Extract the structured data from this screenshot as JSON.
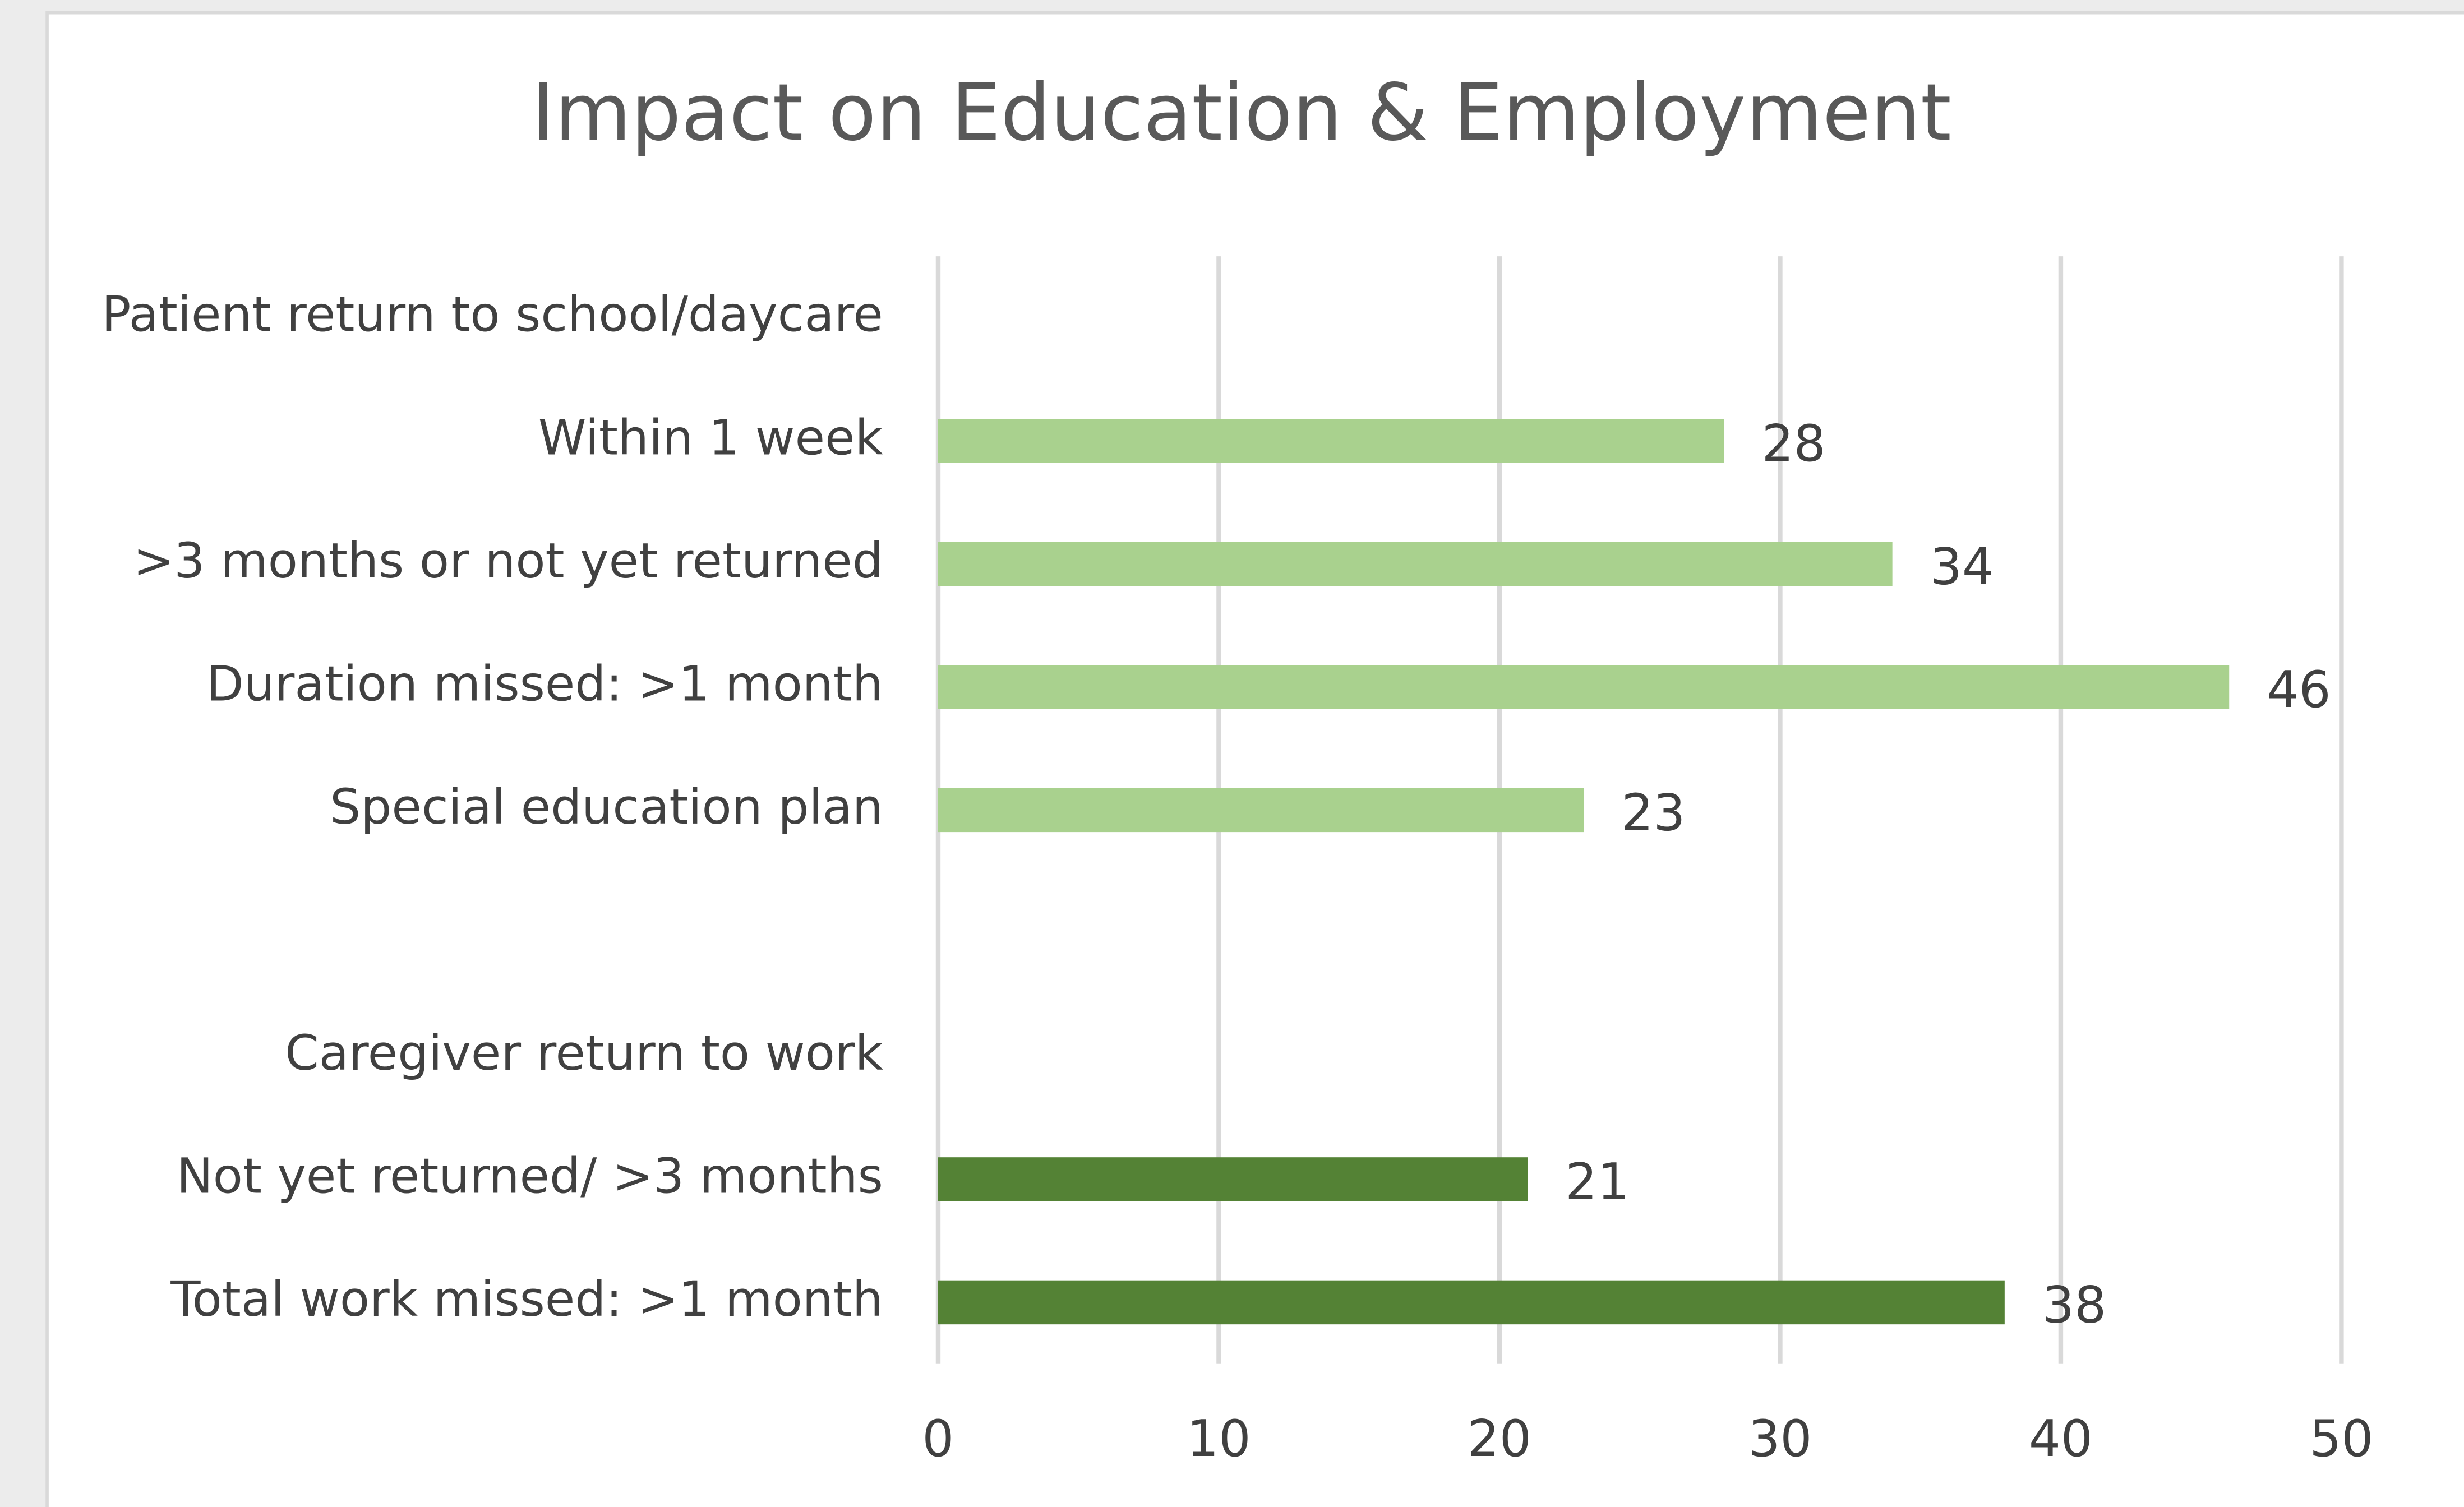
{
  "chart_data": {
    "type": "bar",
    "orientation": "horizontal",
    "title": "Impact on Education & Employment",
    "categories": [
      "Patient return to school/daycare",
      "Within 1 week",
      ">3 months or not yet returned",
      "Duration missed: >1 month",
      "Special education plan",
      null,
      "Caregiver return to work",
      "Not yet returned/ >3 months",
      "Total work missed: >1 month"
    ],
    "values": [
      null,
      28,
      34,
      46,
      23,
      null,
      null,
      21,
      38
    ],
    "colors": [
      null,
      "#a9d18e",
      "#a9d18e",
      "#a9d18e",
      "#a9d18e",
      null,
      null,
      "#548235",
      "#548235"
    ],
    "xlim": [
      0,
      50
    ],
    "xticks": [
      0,
      10,
      20,
      30,
      40,
      50
    ],
    "grid": true
  }
}
